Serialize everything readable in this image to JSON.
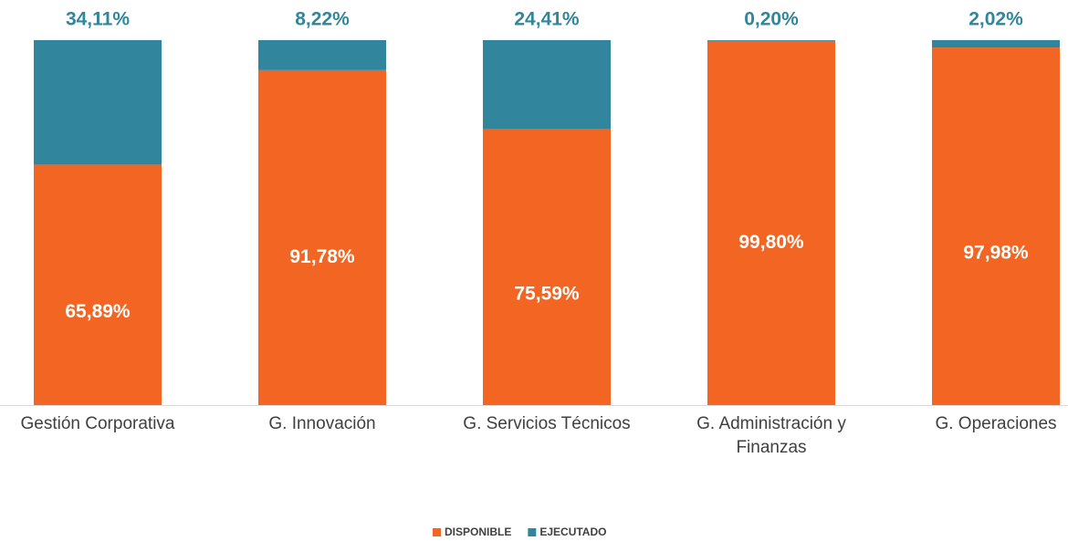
{
  "chart_data": {
    "type": "stacked_bar",
    "categories": [
      "Gestión Corporativa",
      "G. Innovación",
      "G. Servicios Técnicos",
      "G. Administración y Finanzas",
      "G. Operaciones"
    ],
    "series": [
      {
        "name": "DISPONIBLE",
        "color": "#f26522",
        "values": [
          65.89,
          91.78,
          75.59,
          99.8,
          97.98
        ],
        "value_labels": [
          "65,89%",
          "91,78%",
          "75,59%",
          "99,80%",
          "97,98%"
        ]
      },
      {
        "name": "EJECUTADO",
        "color": "#31859c",
        "values": [
          34.11,
          8.22,
          24.41,
          0.2,
          2.02
        ],
        "value_labels": [
          "34,11%",
          "8,22%",
          "24,41%",
          "0,20%",
          "2,02%"
        ]
      }
    ],
    "legend": "bottom"
  }
}
